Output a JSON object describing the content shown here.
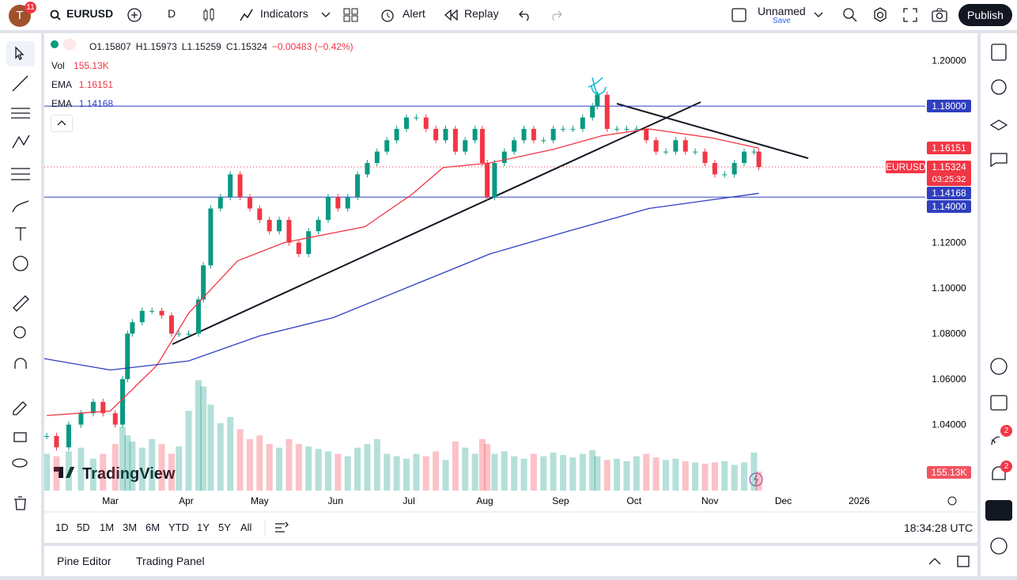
{
  "header": {
    "avatar": "T",
    "notifications": "11",
    "symbol": "EURUSD",
    "interval": "D",
    "indicators": "Indicators",
    "alert": "Alert",
    "replay": "Replay",
    "layout_name": "Unnamed",
    "save": "Save",
    "publish": "Publish"
  },
  "legend": {
    "ohlc": [
      "O1.15807",
      "H1.15973",
      "L1.15259",
      "C1.15324",
      "−0.00483 (−0.42%)"
    ],
    "vol": "Vol",
    "vol_value": "155.13K",
    "ema_fast": "EMA",
    "ema_fast_value": "1.16151",
    "ema_slow": "EMA",
    "ema_slow_value": "1.14168"
  },
  "logo": "TradingView",
  "countdown": "03:25:32",
  "clock": "18:34:28 UTC",
  "ranges": [
    "1D",
    "5D",
    "1M",
    "3M",
    "6M",
    "YTD",
    "1Y",
    "5Y",
    "All"
  ],
  "bottom_tabs": [
    "Pine Editor",
    "Trading Panel"
  ],
  "sidebar_badges": [
    "2",
    "2"
  ],
  "chart_data": {
    "type": "candle-line",
    "x": [
      33,
      37,
      42,
      47,
      52,
      56,
      61,
      64,
      66,
      68,
      72,
      76,
      80,
      84,
      87,
      91,
      95,
      97,
      100,
      104,
      108,
      112,
      116,
      120,
      124,
      128,
      132,
      136,
      140,
      144,
      148,
      152,
      156,
      160,
      164,
      168,
      172,
      176,
      180,
      184,
      188,
      192,
      196,
      200,
      204,
      208,
      211,
      213,
      216,
      220,
      224,
      228,
      232,
      236,
      240,
      244,
      248,
      252,
      256,
      258,
      262,
      266,
      270,
      274,
      278,
      282,
      286,
      290,
      294,
      298,
      302,
      306,
      310,
      314,
      318,
      322,
      324
    ],
    "series": [
      {
        "name": "EURUSD",
        "color": "#089981",
        "down_color": "#f23645",
        "values": [
          1.035,
          1.03,
          1.04,
          1.045,
          1.05,
          1.045,
          1.04,
          1.06,
          1.08,
          1.085,
          1.09,
          1.09,
          1.088,
          1.08,
          1.08,
          1.08,
          1.095,
          1.11,
          1.135,
          1.14,
          1.15,
          1.14,
          1.135,
          1.13,
          1.125,
          1.13,
          1.12,
          1.115,
          1.125,
          1.13,
          1.14,
          1.135,
          1.14,
          1.15,
          1.155,
          1.16,
          1.165,
          1.17,
          1.175,
          1.175,
          1.17,
          1.165,
          1.17,
          1.16,
          1.165,
          1.17,
          1.155,
          1.14,
          1.155,
          1.16,
          1.165,
          1.17,
          1.165,
          1.165,
          1.17,
          1.17,
          1.17,
          1.175,
          1.18,
          1.185,
          1.17,
          1.17,
          1.17,
          1.17,
          1.165,
          1.16,
          1.16,
          1.165,
          1.16,
          1.16,
          1.155,
          1.15,
          1.15,
          1.155,
          1.16,
          1.16,
          1.15324
        ],
        "value_labels": [
          null,
          null,
          null,
          null,
          null,
          null,
          null,
          null,
          null,
          null,
          null,
          null,
          null,
          null,
          null,
          null,
          null,
          null,
          null,
          null,
          null,
          null,
          null,
          null,
          null,
          null,
          null,
          null,
          null,
          null,
          null,
          null,
          null,
          null,
          null,
          null,
          null,
          null,
          null,
          null,
          null,
          null,
          null,
          null,
          null,
          null,
          null,
          null,
          null,
          null,
          null,
          null,
          null,
          null,
          null,
          null,
          null,
          null,
          null,
          null,
          null,
          null,
          null,
          null,
          null,
          null,
          null,
          null,
          null,
          null,
          null,
          null,
          null,
          null,
          null,
          null,
          "1.15324"
        ]
      },
      {
        "name": "EMA",
        "color": "#f23645",
        "x": [
          33,
          59,
          78,
          91,
          111,
          130,
          163,
          182,
          195,
          214,
          240,
          260,
          279,
          305,
          324
        ],
        "values": [
          1.044,
          1.046,
          1.066,
          1.089,
          1.112,
          1.12,
          1.127,
          1.141,
          1.153,
          1.155,
          1.161,
          1.167,
          1.17,
          1.166,
          1.16151
        ],
        "value_labels": [
          null,
          null,
          null,
          null,
          null,
          null,
          null,
          null,
          null,
          null,
          null,
          null,
          null,
          null,
          "1.16151"
        ]
      },
      {
        "name": "EMA",
        "color": "#2f3fc0",
        "x": [
          32,
          59,
          91,
          120,
          150,
          182,
          214,
          246,
          279,
          324
        ],
        "values": [
          1.069,
          1.064,
          1.068,
          1.079,
          1.087,
          1.101,
          1.115,
          1.125,
          1.135,
          1.14168
        ],
        "value_labels": [
          null,
          null,
          null,
          null,
          null,
          null,
          null,
          null,
          null,
          "1.14168"
        ]
      }
    ],
    "volume": {
      "values": [
        300,
        280,
        320,
        350,
        260,
        300,
        380,
        520,
        450,
        400,
        350,
        420,
        380,
        300,
        360,
        650,
        900,
        850,
        700,
        550,
        600,
        500,
        420,
        450,
        380,
        350,
        420,
        380,
        360,
        340,
        320,
        300,
        280,
        350,
        380,
        420,
        300,
        280,
        260,
        300,
        280,
        320,
        250,
        400,
        350,
        300,
        420,
        380,
        300,
        320,
        280,
        260,
        300,
        280,
        310,
        290,
        270,
        300,
        330,
        280,
        250,
        260,
        240,
        280,
        300,
        270,
        250,
        260,
        240,
        230,
        220,
        230,
        240,
        210,
        230,
        310,
        155.13
      ],
      "value_labels": [
        null,
        null,
        null,
        null,
        null,
        null,
        null,
        null,
        null,
        null,
        null,
        null,
        null,
        null,
        null,
        null,
        null,
        null,
        null,
        null,
        null,
        null,
        null,
        null,
        null,
        null,
        null,
        null,
        null,
        null,
        null,
        null,
        null,
        null,
        null,
        null,
        null,
        null,
        null,
        null,
        null,
        null,
        null,
        null,
        null,
        null,
        null,
        null,
        null,
        null,
        null,
        null,
        null,
        null,
        null,
        null,
        null,
        null,
        null,
        null,
        null,
        null,
        null,
        null,
        null,
        null,
        null,
        null,
        null,
        null,
        null,
        null,
        null,
        null,
        null,
        null,
        "155.13K"
      ]
    },
    "hlines": [
      {
        "value": 1.18,
        "label": "1.18000"
      },
      {
        "value": 1.14,
        "label": "1.14000"
      }
    ],
    "xlim": [
      32,
      392
    ],
    "xticks": [
      {
        "value": 59,
        "label": "Mar"
      },
      {
        "value": 90,
        "label": "Apr"
      },
      {
        "value": 120,
        "label": "May"
      },
      {
        "value": 151,
        "label": "Jun"
      },
      {
        "value": 181,
        "label": "Jul"
      },
      {
        "value": 212,
        "label": "Aug"
      },
      {
        "value": 243,
        "label": "Sep"
      },
      {
        "value": 273,
        "label": "Oct"
      },
      {
        "value": 304,
        "label": "Nov"
      },
      {
        "value": 334,
        "label": "Dec"
      },
      {
        "value": 365,
        "label": "2026"
      }
    ],
    "ylim": [
      1.011,
      1.211
    ],
    "yticks": [
      {
        "value": 1.2,
        "label": "1.20000"
      },
      {
        "value": 1.12,
        "label": "1.12000"
      },
      {
        "value": 1.1,
        "label": "1.10000"
      },
      {
        "value": 1.08,
        "label": "1.08000"
      },
      {
        "value": 1.06,
        "label": "1.06000"
      },
      {
        "value": 1.04,
        "label": "1.04000"
      }
    ],
    "grid": false
  }
}
